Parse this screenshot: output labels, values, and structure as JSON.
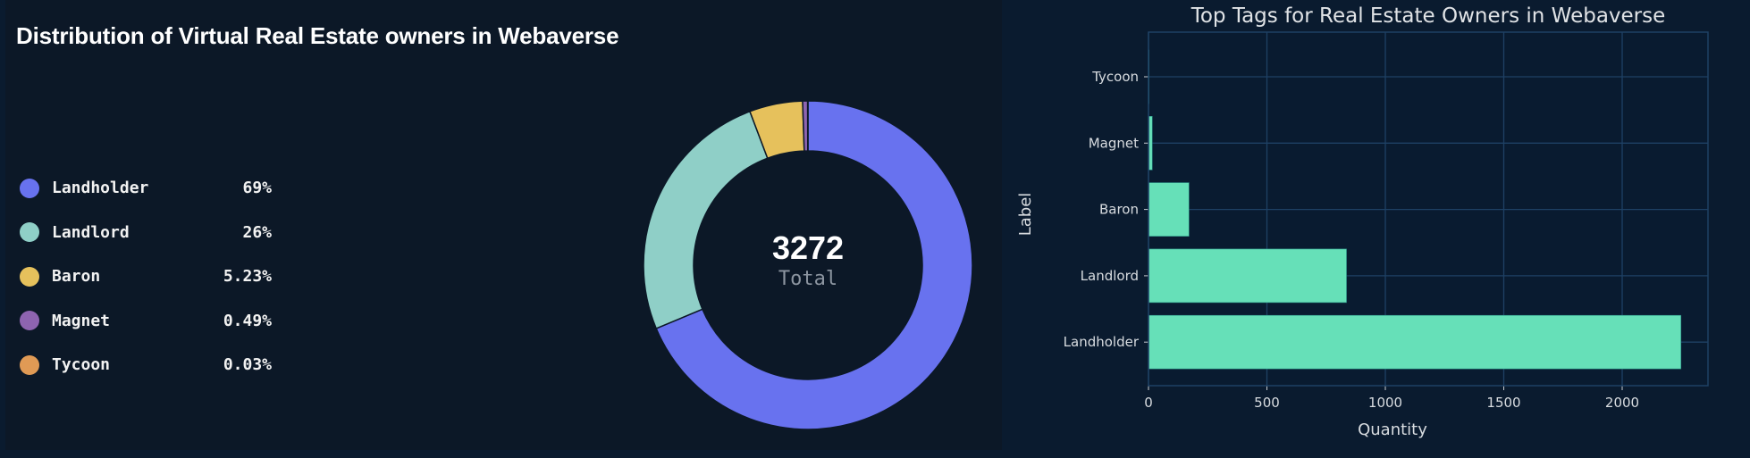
{
  "left_panel": {
    "title": "Distribution of Virtual Real Estate owners in Webaverse",
    "legend": [
      {
        "label": "Landholder",
        "percent": "69%",
        "color": "#6872ef"
      },
      {
        "label": "Landlord",
        "percent": "26%",
        "color": "#8fcfc7"
      },
      {
        "label": "Baron",
        "percent": "5.23%",
        "color": "#e6c15c"
      },
      {
        "label": "Magnet",
        "percent": "0.49%",
        "color": "#8e64b0"
      },
      {
        "label": "Tycoon",
        "percent": "0.03%",
        "color": "#e09a55"
      }
    ],
    "donut": {
      "total": "3272",
      "total_label": "Total"
    }
  },
  "right_panel": {
    "title": "Top Tags for Real Estate Owners in Webaverse",
    "xlabel": "Quantity",
    "ylabel": "Label",
    "bar_color": "#66e0b8",
    "x_ticks": [
      "0",
      "500",
      "1000",
      "1500",
      "2000"
    ],
    "y_ticks": [
      "Tycoon",
      "Magnet",
      "Baron",
      "Landlord",
      "Landholder"
    ]
  },
  "chart_data": [
    {
      "type": "pie",
      "subtype": "donut",
      "title": "Distribution of Virtual Real Estate owners in Webaverse",
      "categories": [
        "Landholder",
        "Landlord",
        "Baron",
        "Magnet",
        "Tycoon"
      ],
      "values": [
        2248,
        836,
        171,
        16,
        1
      ],
      "percent_labels": [
        "69%",
        "26%",
        "5.23%",
        "0.49%",
        "0.03%"
      ],
      "colors": [
        "#6872ef",
        "#8fcfc7",
        "#e6c15c",
        "#8e64b0",
        "#e09a55"
      ],
      "center_text": {
        "value": "3272",
        "label": "Total"
      },
      "legend_position": "left",
      "start_angle": "12 o'clock, clockwise"
    },
    {
      "type": "bar",
      "orientation": "horizontal",
      "title": "Top Tags for Real Estate Owners in Webaverse",
      "categories": [
        "Landholder",
        "Landlord",
        "Baron",
        "Magnet",
        "Tycoon"
      ],
      "values": [
        2248,
        836,
        171,
        16,
        1
      ],
      "xlabel": "Quantity",
      "ylabel": "Label",
      "xlim": [
        0,
        2360
      ],
      "x_ticks": [
        0,
        500,
        1000,
        1500,
        2000
      ],
      "grid": true,
      "legend": false
    }
  ]
}
